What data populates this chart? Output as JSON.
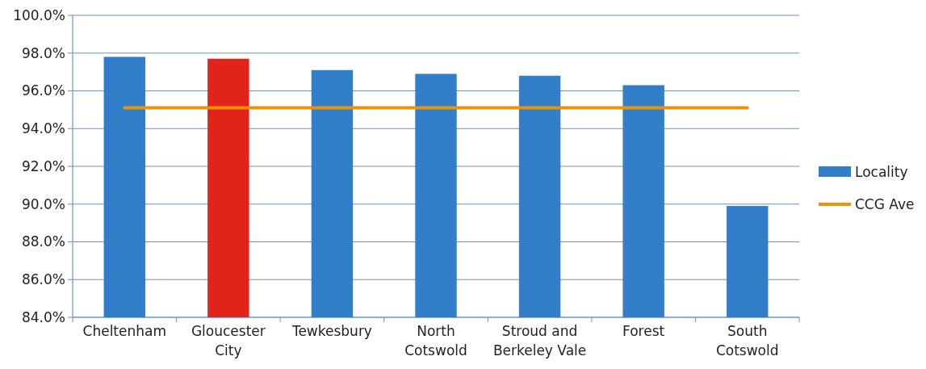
{
  "chart_data": {
    "type": "bar",
    "categories": [
      "Cheltenham",
      "Gloucester City",
      "Tewkesbury",
      "North Cotswold",
      "Stroud and Berkeley Vale",
      "Forest",
      "South Cotswold"
    ],
    "series": [
      {
        "name": "Locality",
        "color": "#337ec8",
        "colors": [
          "#337ec8",
          "#e2231a",
          "#337ec8",
          "#337ec8",
          "#337ec8",
          "#337ec8",
          "#337ec8"
        ],
        "values": [
          97.8,
          97.7,
          97.1,
          96.9,
          96.8,
          96.3,
          89.9
        ]
      },
      {
        "name": "CCG Ave",
        "type": "line",
        "color": "#f39200",
        "values": [
          95.1,
          95.1,
          95.1,
          95.1,
          95.1,
          95.1,
          95.1
        ]
      }
    ],
    "ylim": [
      84,
      100
    ],
    "yticks": [
      {
        "value": 84,
        "label": "84.0%"
      },
      {
        "value": 86,
        "label": "86.0%"
      },
      {
        "value": 88,
        "label": "88.0%"
      },
      {
        "value": 90,
        "label": "90.0%"
      },
      {
        "value": 92,
        "label": "92.0%"
      },
      {
        "value": 94,
        "label": "94.0%"
      },
      {
        "value": 96,
        "label": "96.0%"
      },
      {
        "value": 98,
        "label": "98.0%"
      },
      {
        "value": 100,
        "label": "100.0%"
      }
    ],
    "grid": "y",
    "legend": "right",
    "marker": "none"
  }
}
